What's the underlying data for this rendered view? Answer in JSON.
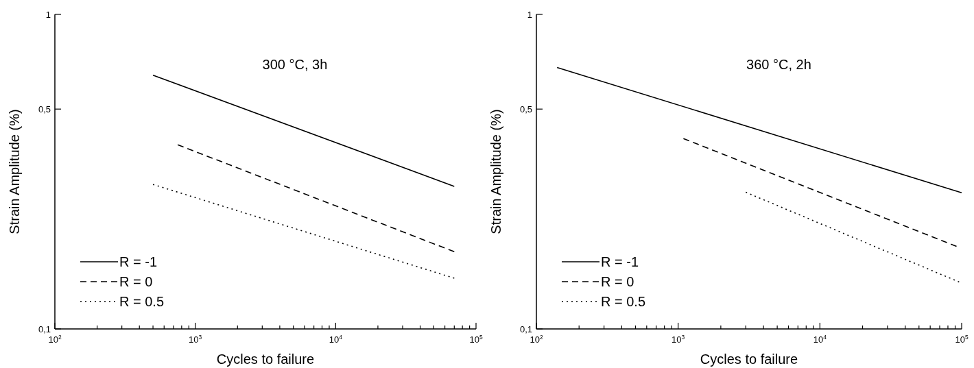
{
  "chart_data": [
    {
      "type": "line",
      "xlabel": "Cycles to failure",
      "ylabel": "Strain Amplitude (%)",
      "annotations": [
        "300 °C, 3h"
      ],
      "log": "xy",
      "legend": "bottom left",
      "grid": false,
      "xlim": [
        100,
        100000
      ],
      "ylim": [
        0.1,
        1
      ],
      "xticks": [
        {
          "value": 100,
          "label": "10$^{2}$"
        },
        {
          "value": 200,
          "label": null
        },
        {
          "value": 300,
          "label": null
        },
        {
          "value": 400,
          "label": null
        },
        {
          "value": 500,
          "label": null
        },
        {
          "value": 600,
          "label": null
        },
        {
          "value": 700,
          "label": null
        },
        {
          "value": 800,
          "label": null
        },
        {
          "value": 900,
          "label": null
        },
        {
          "value": 1000,
          "label": "10$^{3}$"
        },
        {
          "value": 2000,
          "label": null
        },
        {
          "value": 3000,
          "label": null
        },
        {
          "value": 4000,
          "label": null
        },
        {
          "value": 5000,
          "label": null
        },
        {
          "value": 6000,
          "label": null
        },
        {
          "value": 7000,
          "label": null
        },
        {
          "value": 8000,
          "label": null
        },
        {
          "value": 9000,
          "label": null
        },
        {
          "value": 10000,
          "label": "10$^{4}$"
        },
        {
          "value": 20000,
          "label": null
        },
        {
          "value": 30000,
          "label": null
        },
        {
          "value": 40000,
          "label": null
        },
        {
          "value": 50000,
          "label": null
        },
        {
          "value": 60000,
          "label": null
        },
        {
          "value": 70000,
          "label": null
        },
        {
          "value": 80000,
          "label": null
        },
        {
          "value": 90000,
          "label": null
        },
        {
          "value": 100000,
          "label": "10$^{5}$"
        }
      ],
      "yticks": [
        {
          "value": 0.1,
          "label": "0,1"
        },
        {
          "value": 0.5,
          "label": "0,5"
        },
        {
          "value": 1,
          "label": "1"
        }
      ],
      "series": [
        {
          "name": "R = -1",
          "color": "#000000",
          "line_style": "solid",
          "x": [
            500,
            70000
          ],
          "values": [
            0.641,
            0.284
          ]
        },
        {
          "name": "R = 0",
          "color": "#000000",
          "line_style": "dashed",
          "x": [
            750,
            70000
          ],
          "values": [
            0.385,
            0.176
          ]
        },
        {
          "name": "R = 0.5",
          "color": "#000000",
          "line_style": "dotted",
          "x": [
            500,
            70000
          ],
          "values": [
            0.288,
            0.145
          ]
        }
      ]
    },
    {
      "type": "line",
      "xlabel": "Cycles to failure",
      "ylabel": "Strain Amplitude (%)",
      "annotations": [
        "360 °C, 2h"
      ],
      "log": "xy",
      "legend": "bottom left",
      "grid": false,
      "xlim": [
        100,
        100000
      ],
      "ylim": [
        0.1,
        1
      ],
      "xticks": [
        {
          "value": 100,
          "label": "10$^{2}$"
        },
        {
          "value": 200,
          "label": null
        },
        {
          "value": 300,
          "label": null
        },
        {
          "value": 400,
          "label": null
        },
        {
          "value": 500,
          "label": null
        },
        {
          "value": 600,
          "label": null
        },
        {
          "value": 700,
          "label": null
        },
        {
          "value": 800,
          "label": null
        },
        {
          "value": 900,
          "label": null
        },
        {
          "value": 1000,
          "label": "10$^{3}$"
        },
        {
          "value": 2000,
          "label": null
        },
        {
          "value": 3000,
          "label": null
        },
        {
          "value": 4000,
          "label": null
        },
        {
          "value": 5000,
          "label": null
        },
        {
          "value": 6000,
          "label": null
        },
        {
          "value": 7000,
          "label": null
        },
        {
          "value": 8000,
          "label": null
        },
        {
          "value": 9000,
          "label": null
        },
        {
          "value": 10000,
          "label": "10$^{4}$"
        },
        {
          "value": 20000,
          "label": null
        },
        {
          "value": 30000,
          "label": null
        },
        {
          "value": 40000,
          "label": null
        },
        {
          "value": 50000,
          "label": null
        },
        {
          "value": 60000,
          "label": null
        },
        {
          "value": 70000,
          "label": null
        },
        {
          "value": 80000,
          "label": null
        },
        {
          "value": 90000,
          "label": null
        },
        {
          "value": 100000,
          "label": "10$^{5}$"
        }
      ],
      "yticks": [
        {
          "value": 0.1,
          "label": "0,1"
        },
        {
          "value": 0.5,
          "label": "0,5"
        },
        {
          "value": 1,
          "label": "1"
        }
      ],
      "series": [
        {
          "name": "R = -1",
          "color": "#000000",
          "line_style": "solid",
          "x": [
            140,
            100000
          ],
          "values": [
            0.678,
            0.271
          ]
        },
        {
          "name": "R = 0",
          "color": "#000000",
          "line_style": "dashed",
          "x": [
            1090,
            92000
          ],
          "values": [
            0.403,
            0.183
          ]
        },
        {
          "name": "R = 0.5",
          "color": "#000000",
          "line_style": "dotted",
          "x": [
            3000,
            96000
          ],
          "values": [
            0.272,
            0.141
          ]
        }
      ]
    }
  ]
}
